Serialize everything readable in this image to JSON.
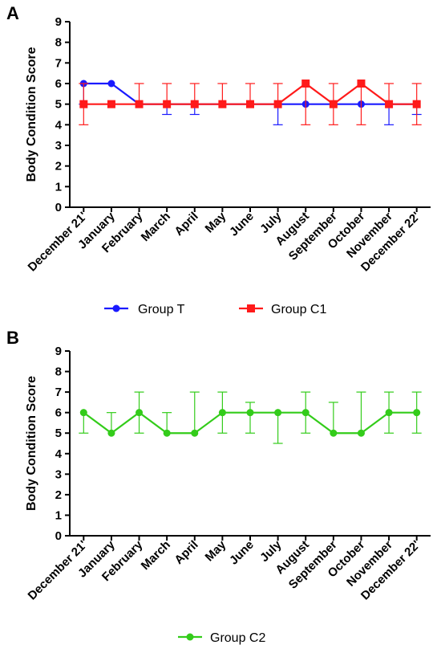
{
  "chart_data": [
    {
      "panel": "A",
      "type": "line",
      "ylabel": "Body Condition Score",
      "ylim": [
        0,
        9
      ],
      "yticks": [
        0,
        1,
        2,
        3,
        4,
        5,
        6,
        7,
        8,
        9
      ],
      "categories": [
        "December 21'",
        "January",
        "February",
        "March",
        "April",
        "May",
        "June",
        "July",
        "August",
        "September",
        "October",
        "November",
        "December 22'"
      ],
      "legend_position": "bottom",
      "series": [
        {
          "name": "Group T",
          "color": "#1a1aff",
          "marker": "circle",
          "values": [
            6,
            6,
            5,
            5,
            5,
            5,
            5,
            5,
            5,
            5,
            5,
            5,
            5
          ],
          "err_low": [
            5,
            6,
            5,
            4.5,
            4.5,
            5,
            5,
            4,
            5,
            5,
            5,
            4,
            4.5
          ],
          "err_high": [
            6,
            6,
            5,
            5,
            5,
            5,
            5,
            5,
            5,
            5,
            5,
            5,
            5
          ]
        },
        {
          "name": "Group C1",
          "color": "#ff1a1a",
          "marker": "square",
          "values": [
            5,
            5,
            5,
            5,
            5,
            5,
            5,
            5,
            6,
            5,
            6,
            5,
            5
          ],
          "err_low": [
            4,
            5,
            5,
            5,
            5,
            5,
            5,
            5,
            4,
            4,
            4,
            5,
            4
          ],
          "err_high": [
            6,
            5,
            6,
            6,
            6,
            6,
            6,
            6,
            6,
            6,
            6,
            6,
            6
          ]
        }
      ]
    },
    {
      "panel": "B",
      "type": "line",
      "ylabel": "Body Condition Score",
      "ylim": [
        0,
        9
      ],
      "yticks": [
        0,
        1,
        2,
        3,
        4,
        5,
        6,
        7,
        8,
        9
      ],
      "categories": [
        "December 21'",
        "January",
        "February",
        "March",
        "April",
        "May",
        "June",
        "July",
        "August",
        "September",
        "October",
        "November",
        "December 22'"
      ],
      "legend_position": "bottom",
      "series": [
        {
          "name": "Group C2",
          "color": "#33cc1a",
          "marker": "circle",
          "values": [
            6,
            5,
            6,
            5,
            5,
            6,
            6,
            6,
            6,
            5,
            5,
            6,
            6
          ],
          "err_low": [
            5,
            5,
            5,
            5,
            5,
            5,
            5,
            4.5,
            5,
            5,
            5,
            5,
            5
          ],
          "err_high": [
            6,
            6,
            7,
            6,
            7,
            7,
            6.5,
            6,
            7,
            6.5,
            7,
            7,
            7
          ]
        }
      ]
    }
  ]
}
